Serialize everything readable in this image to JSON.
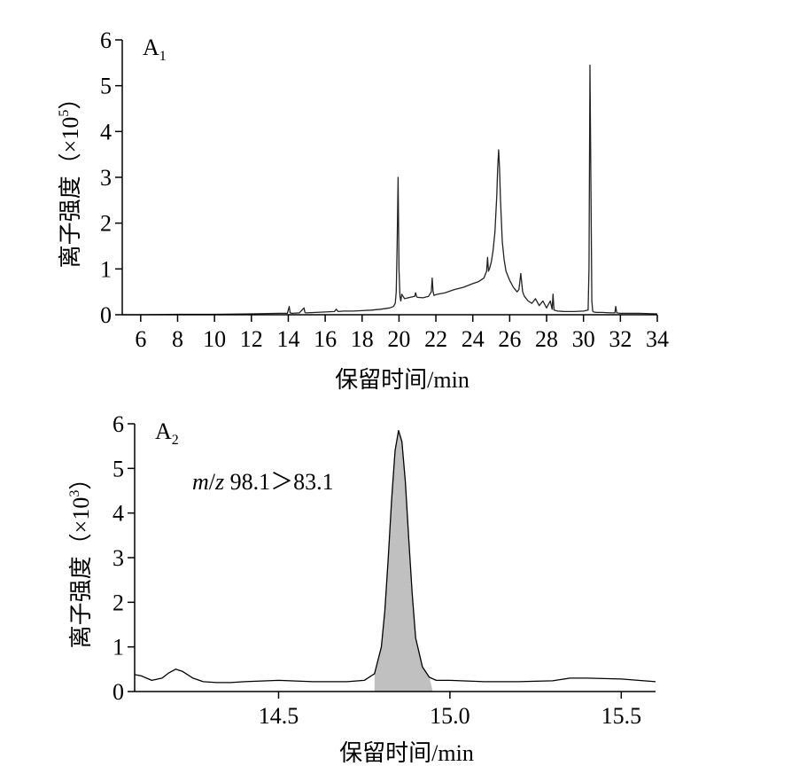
{
  "chart_data": [
    {
      "type": "line",
      "panel_label": "A",
      "panel_label_sub": "1",
      "xlabel": "保留时间/min",
      "ylabel": "离子强度（×10",
      "ylabel_exponent": "5",
      "ylabel_close": "）",
      "xlim": [
        5,
        34
      ],
      "ylim": [
        0,
        6
      ],
      "xticks": [
        6,
        8,
        10,
        12,
        14,
        16,
        18,
        20,
        22,
        24,
        26,
        28,
        30,
        32,
        34
      ],
      "yticks": [
        0,
        1,
        2,
        3,
        4,
        5,
        6
      ],
      "line_color": "#222222",
      "series": [
        {
          "x": [
            5.0,
            6.0,
            8.0,
            10.0,
            12.0,
            13.5,
            13.95,
            14.05,
            14.1,
            14.2,
            14.6,
            14.85,
            14.9,
            14.95,
            15.5,
            16.0,
            16.5,
            16.6,
            16.7,
            17.0,
            17.5,
            18.0,
            18.5,
            19.0,
            19.5,
            19.7,
            19.8,
            19.85,
            19.9,
            19.95,
            20.0,
            20.05,
            20.1,
            20.15,
            20.3,
            20.6,
            20.85,
            20.9,
            20.95,
            21.0,
            21.3,
            21.6,
            21.75,
            21.8,
            21.85,
            21.9,
            22.0,
            22.5,
            23.0,
            23.5,
            24.0,
            24.3,
            24.6,
            24.75,
            24.8,
            24.85,
            24.9,
            25.0,
            25.1,
            25.2,
            25.3,
            25.35,
            25.4,
            25.45,
            25.5,
            25.6,
            25.7,
            25.8,
            26.0,
            26.2,
            26.4,
            26.5,
            26.6,
            26.7,
            26.8,
            27.0,
            27.2,
            27.4,
            27.6,
            27.8,
            28.0,
            28.2,
            28.3,
            28.35,
            28.4,
            28.6,
            29.0,
            29.5,
            30.0,
            30.25,
            30.3,
            30.35,
            30.4,
            30.45,
            30.5,
            30.55,
            30.7,
            31.0,
            31.5,
            31.7,
            31.75,
            31.8,
            32.0,
            33.0,
            34.0
          ],
          "y": [
            0.0,
            0.0,
            0.01,
            0.01,
            0.02,
            0.03,
            0.03,
            0.18,
            0.04,
            0.03,
            0.04,
            0.15,
            0.05,
            0.04,
            0.05,
            0.06,
            0.07,
            0.12,
            0.07,
            0.08,
            0.08,
            0.09,
            0.1,
            0.12,
            0.15,
            0.18,
            0.25,
            0.5,
            1.5,
            3.0,
            1.0,
            0.4,
            0.3,
            0.45,
            0.35,
            0.38,
            0.4,
            0.48,
            0.4,
            0.38,
            0.37,
            0.4,
            0.5,
            0.8,
            0.5,
            0.42,
            0.44,
            0.48,
            0.55,
            0.6,
            0.68,
            0.72,
            0.8,
            0.95,
            1.25,
            0.95,
            1.0,
            1.15,
            1.4,
            1.8,
            2.6,
            3.2,
            3.6,
            3.2,
            2.5,
            1.6,
            1.2,
            0.95,
            0.75,
            0.6,
            0.5,
            0.55,
            0.9,
            0.5,
            0.4,
            0.3,
            0.25,
            0.35,
            0.2,
            0.3,
            0.15,
            0.3,
            0.12,
            0.45,
            0.1,
            0.08,
            0.07,
            0.07,
            0.08,
            0.1,
            1.0,
            5.45,
            3.0,
            0.3,
            0.08,
            0.06,
            0.05,
            0.05,
            0.04,
            0.04,
            0.18,
            0.04,
            0.03,
            0.03,
            0.02
          ]
        }
      ]
    },
    {
      "type": "area",
      "panel_label": "A",
      "panel_label_sub": "2",
      "annotation_italic_1": "m",
      "annotation_mid": "/",
      "annotation_italic_2": "z",
      "annotation_rest": " 98.1＞83.1",
      "xlabel": "保留时间/min",
      "ylabel": "离子强度（×10",
      "ylabel_exponent": "3",
      "ylabel_close": "）",
      "xlim": [
        14.08,
        15.6
      ],
      "ylim": [
        0,
        6
      ],
      "xticks": [
        14.5,
        15.0,
        15.5
      ],
      "xtick_labels": [
        "14.5",
        "15.0",
        "15.5"
      ],
      "yticks": [
        0,
        1,
        2,
        3,
        4,
        5,
        6
      ],
      "line_color": "#000000",
      "fill_color": "#c0c0c0",
      "series": [
        {
          "x": [
            14.08,
            14.1,
            14.13,
            14.16,
            14.18,
            14.2,
            14.22,
            14.25,
            14.28,
            14.32,
            14.36,
            14.4,
            14.5,
            14.6,
            14.7,
            14.75,
            14.78,
            14.8,
            14.81,
            14.82,
            14.83,
            14.84,
            14.85,
            14.86,
            14.87,
            14.88,
            14.89,
            14.9,
            14.92,
            14.94,
            14.96,
            15.0,
            15.1,
            15.2,
            15.3,
            15.35,
            15.4,
            15.5,
            15.55,
            15.6
          ],
          "y": [
            0.38,
            0.35,
            0.25,
            0.3,
            0.42,
            0.5,
            0.45,
            0.3,
            0.22,
            0.2,
            0.2,
            0.22,
            0.25,
            0.22,
            0.22,
            0.25,
            0.4,
            1.0,
            1.8,
            3.0,
            4.3,
            5.4,
            5.85,
            5.6,
            4.7,
            3.4,
            2.2,
            1.2,
            0.55,
            0.32,
            0.25,
            0.25,
            0.22,
            0.22,
            0.24,
            0.3,
            0.3,
            0.28,
            0.25,
            0.22
          ]
        }
      ],
      "filled_range": [
        14.78,
        14.95
      ]
    }
  ]
}
